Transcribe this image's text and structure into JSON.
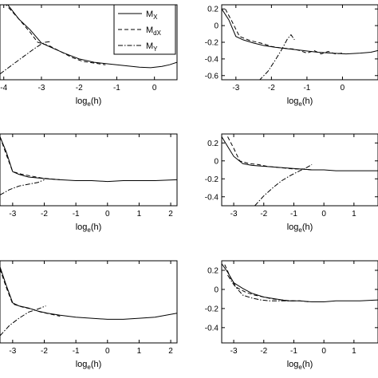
{
  "figure": {
    "legend": {
      "entries": [
        {
          "label": "M",
          "sub": "X",
          "style": "solid"
        },
        {
          "label": "M",
          "sub": "dX",
          "style": "dashed"
        },
        {
          "label": "M",
          "sub": "Y",
          "style": "dashdot"
        }
      ]
    },
    "xlabel": {
      "main": "log",
      "sub": "e",
      "tail": "(h)"
    }
  },
  "chart_data": [
    {
      "type": "line",
      "panel": "top-left",
      "xlim": [
        -4.1,
        0.6
      ],
      "ylim": [
        -0.65,
        0.25
      ],
      "xticks": [
        -4,
        -3,
        -2,
        -1,
        0
      ],
      "yticks": [],
      "xlabel": "log_e(h)",
      "ylabel": "",
      "series": [
        {
          "name": "M_X",
          "style": "solid",
          "x": [
            -4.1,
            -3.6,
            -3.3,
            -3.0,
            -2.7,
            -2.4,
            -2.0,
            -1.6,
            -1.2,
            -0.8,
            -0.4,
            -0.1,
            0.2,
            0.4,
            0.6
          ],
          "y": [
            0.37,
            0.08,
            -0.05,
            -0.21,
            -0.27,
            -0.33,
            -0.4,
            -0.44,
            -0.46,
            -0.48,
            -0.5,
            -0.505,
            -0.49,
            -0.47,
            -0.44
          ]
        },
        {
          "name": "M_dX",
          "style": "dashed",
          "x": [
            -4.1,
            -3.6,
            -3.3,
            -3.1,
            -2.8,
            -2.5,
            -2.2,
            -1.9,
            -1.6,
            -1.3
          ],
          "y": [
            0.33,
            0.08,
            -0.08,
            -0.2,
            -0.24,
            -0.31,
            -0.38,
            -0.43,
            -0.45,
            -0.47
          ]
        },
        {
          "name": "M_Y",
          "style": "dashdot",
          "x": [
            -4.1,
            -3.8,
            -3.5,
            -3.2,
            -3.0,
            -2.9,
            -2.75
          ],
          "y": [
            -0.58,
            -0.48,
            -0.38,
            -0.28,
            -0.22,
            -0.2,
            -0.19
          ]
        }
      ]
    },
    {
      "type": "line",
      "panel": "top-right",
      "xlim": [
        -3.4,
        1.0
      ],
      "ylim": [
        -0.65,
        0.25
      ],
      "xticks": [
        -3,
        -2,
        -1,
        0
      ],
      "yticks": [
        0.2,
        0,
        -0.2,
        -0.4,
        -0.6
      ],
      "xlabel": "log_e(h)",
      "ylabel": "",
      "series": [
        {
          "name": "M_X",
          "style": "solid",
          "x": [
            -3.4,
            -3.2,
            -3.0,
            -2.8,
            -2.5,
            -2.2,
            -1.9,
            -1.5,
            -1.1,
            -0.7,
            -0.3,
            0.1,
            0.5,
            0.8,
            1.0
          ],
          "y": [
            0.2,
            0.07,
            -0.13,
            -0.17,
            -0.21,
            -0.24,
            -0.26,
            -0.28,
            -0.3,
            -0.32,
            -0.33,
            -0.34,
            -0.33,
            -0.32,
            -0.3
          ]
        },
        {
          "name": "M_dX",
          "style": "dashed",
          "x": [
            -3.3,
            -3.1,
            -2.9,
            -2.6,
            -2.3,
            -2.0,
            -1.7,
            -1.4,
            -1.2,
            -1.0,
            -0.8,
            -0.6,
            -0.4,
            -0.2,
            0.0
          ],
          "y": [
            0.2,
            0.04,
            -0.13,
            -0.18,
            -0.21,
            -0.25,
            -0.27,
            -0.28,
            -0.3,
            -0.33,
            -0.3,
            -0.34,
            -0.31,
            -0.34,
            -0.33
          ]
        },
        {
          "name": "M_Y",
          "style": "dashdot",
          "x": [
            -2.35,
            -2.1,
            -1.9,
            -1.7,
            -1.55,
            -1.45,
            -1.35
          ],
          "y": [
            -0.66,
            -0.55,
            -0.42,
            -0.28,
            -0.16,
            -0.11,
            -0.17
          ]
        }
      ]
    },
    {
      "type": "line",
      "panel": "middle-left",
      "xlim": [
        -3.4,
        2.2
      ],
      "ylim": [
        -0.5,
        0.3
      ],
      "xticks": [
        -3,
        -2,
        -1,
        0,
        1,
        2
      ],
      "yticks": [],
      "xlabel": "log_e(h)",
      "ylabel": "",
      "series": [
        {
          "name": "M_X",
          "style": "solid",
          "x": [
            -3.4,
            -3.2,
            -3.0,
            -2.8,
            -2.5,
            -2.2,
            -1.9,
            -1.5,
            -1.0,
            -0.5,
            0.0,
            0.5,
            1.0,
            1.5,
            2.2
          ],
          "y": [
            0.27,
            0.1,
            -0.12,
            -0.15,
            -0.18,
            -0.19,
            -0.2,
            -0.21,
            -0.22,
            -0.22,
            -0.23,
            -0.22,
            -0.22,
            -0.22,
            -0.21
          ]
        },
        {
          "name": "M_dX",
          "style": "dashed",
          "x": [
            -3.4,
            -3.2,
            -3.0,
            -2.7,
            -2.4,
            -2.1,
            -1.8,
            -1.5
          ],
          "y": [
            0.27,
            0.07,
            -0.12,
            -0.15,
            -0.17,
            -0.19,
            -0.2,
            -0.21
          ]
        },
        {
          "name": "M_Y",
          "style": "dashdot",
          "x": [
            -3.4,
            -3.1,
            -2.8,
            -2.5,
            -2.2,
            -2.0
          ],
          "y": [
            -0.38,
            -0.32,
            -0.28,
            -0.26,
            -0.24,
            -0.21
          ]
        }
      ]
    },
    {
      "type": "line",
      "panel": "middle-right",
      "xlim": [
        -3.4,
        1.8
      ],
      "ylim": [
        -0.5,
        0.3
      ],
      "xticks": [
        -3,
        -2,
        -1,
        0,
        1
      ],
      "yticks": [
        0.2,
        0,
        -0.2,
        -0.4
      ],
      "xlabel": "log_e(h)",
      "ylabel": "",
      "series": [
        {
          "name": "M_X",
          "style": "solid",
          "x": [
            -3.4,
            -3.2,
            -3.0,
            -2.7,
            -2.4,
            -2.0,
            -1.6,
            -1.2,
            -0.8,
            -0.4,
            0.0,
            0.4,
            0.8,
            1.2,
            1.8
          ],
          "y": [
            0.27,
            0.16,
            0.05,
            -0.03,
            -0.05,
            -0.06,
            -0.07,
            -0.08,
            -0.09,
            -0.1,
            -0.1,
            -0.11,
            -0.11,
            -0.11,
            -0.11
          ]
        },
        {
          "name": "M_dX",
          "style": "dashed",
          "x": [
            -3.2,
            -3.0,
            -2.8,
            -2.5,
            -2.2,
            -1.9,
            -1.6,
            -1.3,
            -1.0,
            -0.7,
            -0.4
          ],
          "y": [
            0.27,
            0.14,
            0.0,
            -0.03,
            -0.04,
            -0.06,
            -0.07,
            -0.08,
            -0.09,
            -0.09,
            -0.1
          ]
        },
        {
          "name": "M_Y",
          "style": "dashdot",
          "x": [
            -2.3,
            -2.0,
            -1.7,
            -1.4,
            -1.1,
            -0.8,
            -0.6,
            -0.4
          ],
          "y": [
            -0.5,
            -0.39,
            -0.3,
            -0.22,
            -0.16,
            -0.11,
            -0.08,
            -0.04
          ]
        }
      ]
    },
    {
      "type": "line",
      "panel": "bottom-left",
      "xlim": [
        -3.4,
        2.2
      ],
      "ylim": [
        -0.5,
        0.3
      ],
      "xticks": [
        -3,
        -2,
        -1,
        0,
        1,
        2
      ],
      "yticks": [],
      "xlabel": "log_e(h)",
      "ylabel": "",
      "series": [
        {
          "name": "M_X",
          "style": "solid",
          "x": [
            -3.4,
            -3.2,
            -3.0,
            -2.8,
            -2.5,
            -2.2,
            -1.9,
            -1.5,
            -1.0,
            -0.5,
            0.0,
            0.5,
            1.0,
            1.5,
            2.2
          ],
          "y": [
            0.24,
            0.06,
            -0.11,
            -0.14,
            -0.16,
            -0.19,
            -0.21,
            -0.23,
            -0.25,
            -0.26,
            -0.27,
            -0.27,
            -0.26,
            -0.25,
            -0.21
          ]
        },
        {
          "name": "M_dX",
          "style": "dashed",
          "x": [
            -3.4,
            -3.2,
            -3.0,
            -2.7,
            -2.4,
            -2.1,
            -1.8,
            -1.5
          ],
          "y": [
            0.22,
            0.04,
            -0.12,
            -0.15,
            -0.17,
            -0.2,
            -0.22,
            -0.24
          ]
        },
        {
          "name": "M_Y",
          "style": "dashdot",
          "x": [
            -3.4,
            -3.1,
            -2.8,
            -2.5,
            -2.2,
            -1.95
          ],
          "y": [
            -0.43,
            -0.33,
            -0.26,
            -0.2,
            -0.17,
            -0.14
          ]
        }
      ]
    },
    {
      "type": "line",
      "panel": "bottom-right",
      "xlim": [
        -3.4,
        1.8
      ],
      "ylim": [
        -0.56,
        0.3
      ],
      "xticks": [
        -3,
        -2,
        -1,
        0,
        1
      ],
      "yticks": [
        0.2,
        0,
        -0.2,
        -0.4
      ],
      "xlabel": "log_e(h)",
      "ylabel": "",
      "series": [
        {
          "name": "M_X",
          "style": "solid",
          "x": [
            -3.4,
            -3.2,
            -3.0,
            -2.7,
            -2.4,
            -2.0,
            -1.6,
            -1.2,
            -0.8,
            -0.4,
            0.0,
            0.4,
            0.8,
            1.2,
            1.8
          ],
          "y": [
            0.27,
            0.18,
            0.07,
            0.01,
            -0.04,
            -0.08,
            -0.1,
            -0.12,
            -0.12,
            -0.13,
            -0.13,
            -0.12,
            -0.12,
            -0.12,
            -0.11
          ]
        },
        {
          "name": "M_dX",
          "style": "dashed",
          "x": [
            -3.3,
            -3.1,
            -2.9,
            -2.6,
            -2.3,
            -2.0,
            -1.7,
            -1.4,
            -1.1,
            -0.8,
            -0.5
          ],
          "y": [
            0.26,
            0.12,
            0.02,
            -0.03,
            -0.06,
            -0.08,
            -0.1,
            -0.11,
            -0.12,
            -0.12,
            -0.13
          ]
        },
        {
          "name": "M_Y",
          "style": "dashdot",
          "x": [
            -3.2,
            -3.0,
            -2.7,
            -2.4,
            -2.1,
            -1.8,
            -1.5,
            -1.2,
            -1.0
          ],
          "y": [
            0.15,
            0.05,
            -0.06,
            -0.09,
            -0.11,
            -0.12,
            -0.12,
            -0.12,
            -0.12
          ]
        }
      ]
    }
  ]
}
